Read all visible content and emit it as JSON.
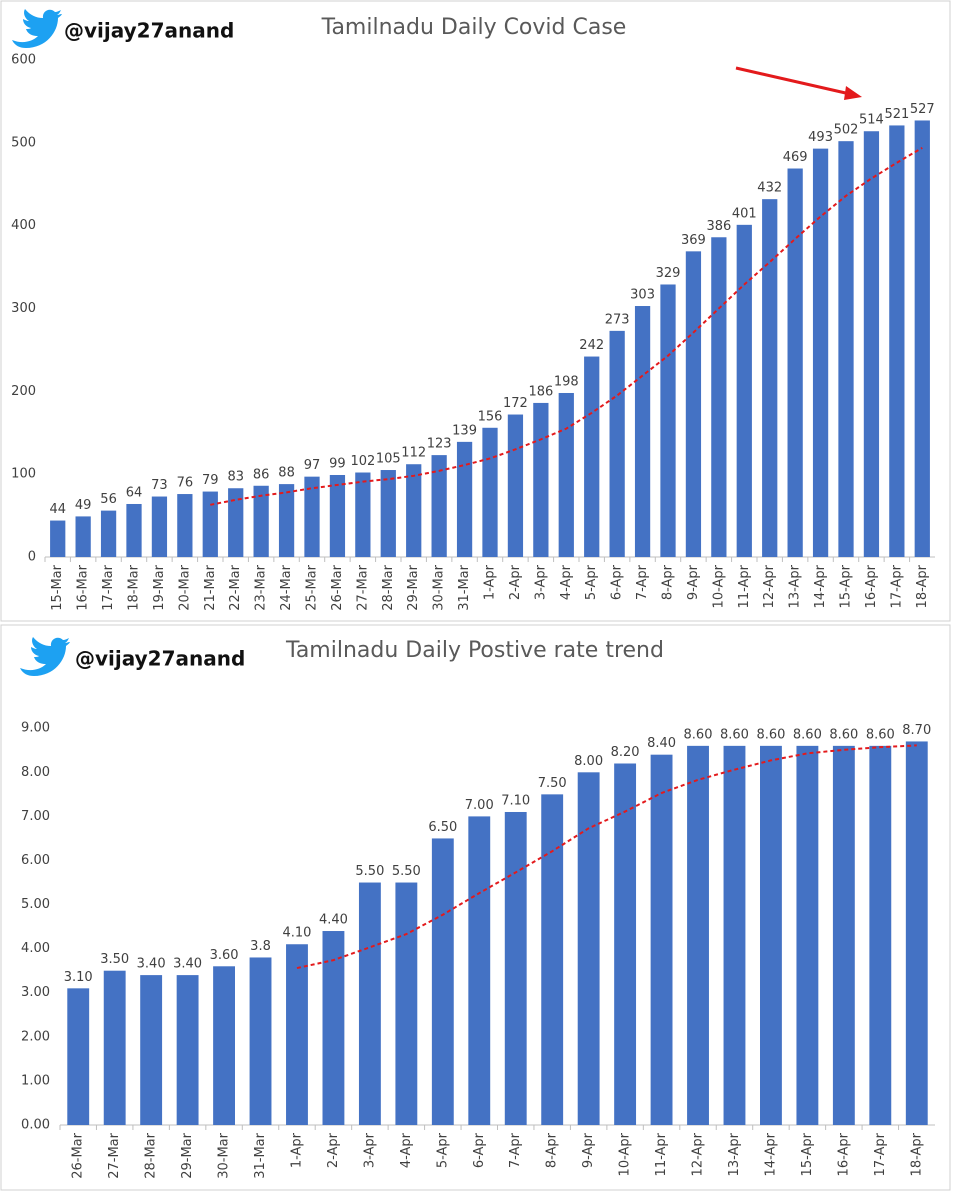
{
  "chart_data": [
    {
      "type": "bar",
      "handle": "@vijay27anand",
      "title": "Tamilnadu Daily Covid Case",
      "categories": [
        "15-Mar",
        "16-Mar",
        "17-Mar",
        "18-Mar",
        "19-Mar",
        "20-Mar",
        "21-Mar",
        "22-Mar",
        "23-Mar",
        "24-Mar",
        "25-Mar",
        "26-Mar",
        "27-Mar",
        "28-Mar",
        "29-Mar",
        "30-Mar",
        "31-Mar",
        "1-Apr",
        "2-Apr",
        "3-Apr",
        "4-Apr",
        "5-Apr",
        "6-Apr",
        "7-Apr",
        "8-Apr",
        "9-Apr",
        "10-Apr",
        "11-Apr",
        "12-Apr",
        "13-Apr",
        "14-Apr",
        "15-Apr",
        "16-Apr",
        "17-Apr",
        "18-Apr"
      ],
      "values": [
        44,
        49,
        56,
        64,
        73,
        76,
        79,
        83,
        86,
        88,
        97,
        99,
        102,
        105,
        112,
        123,
        139,
        156,
        172,
        186,
        198,
        242,
        273,
        303,
        329,
        369,
        386,
        401,
        432,
        469,
        493,
        502,
        514,
        521,
        527
      ],
      "color": "#4472c4",
      "trendline": {
        "color": "#e31a1c",
        "values": [
          null,
          null,
          null,
          null,
          null,
          null,
          63,
          69,
          74,
          78,
          83,
          87,
          91,
          94,
          98,
          104,
          111,
          119,
          130,
          142,
          155,
          174,
          195,
          219,
          243,
          271,
          300,
          329,
          356,
          384,
          411,
          436,
          457,
          476,
          494
        ]
      },
      "ylim": [
        0,
        600
      ],
      "yticks": [
        0,
        100,
        200,
        300,
        400,
        500,
        600
      ],
      "grid": false
    },
    {
      "type": "bar",
      "handle": "@vijay27anand",
      "title": "Tamilnadu Daily Postive rate trend",
      "categories": [
        "26-Mar",
        "27-Mar",
        "28-Mar",
        "29-Mar",
        "30-Mar",
        "31-Mar",
        "1-Apr",
        "2-Apr",
        "3-Apr",
        "4-Apr",
        "5-Apr",
        "6-Apr",
        "7-Apr",
        "8-Apr",
        "9-Apr",
        "10-Apr",
        "11-Apr",
        "12-Apr",
        "13-Apr",
        "14-Apr",
        "15-Apr",
        "16-Apr",
        "17-Apr",
        "18-Apr"
      ],
      "values": [
        3.1,
        3.5,
        3.4,
        3.4,
        3.6,
        3.8,
        4.1,
        4.4,
        5.5,
        5.5,
        6.5,
        7,
        7.1,
        7.5,
        8,
        8.2,
        8.4,
        8.6,
        8.6,
        8.6,
        8.6,
        8.6,
        8.6,
        8.7
      ],
      "value_labels": [
        "3.10",
        "3.50",
        "3.40",
        "3.40",
        "3.60",
        "3.8",
        "4.10",
        "4.40",
        "5.50",
        "5.50",
        "6.50",
        "7.00",
        "7.10",
        "7.50",
        "8.00",
        "8.20",
        "8.40",
        "8.60",
        "8.60",
        "8.60",
        "8.60",
        "8.60",
        "8.60",
        "8.70"
      ],
      "color": "#4472c4",
      "trendline": {
        "color": "#e31a1c",
        "values": [
          null,
          null,
          null,
          null,
          null,
          null,
          3.56,
          3.74,
          4.03,
          4.33,
          4.77,
          5.26,
          5.73,
          6.21,
          6.73,
          7.11,
          7.53,
          7.83,
          8.06,
          8.27,
          8.43,
          8.51,
          8.57,
          8.61
        ]
      },
      "ylim": [
        0,
        9.3
      ],
      "yticks": [
        {
          "value": 0,
          "label": "0.00"
        },
        {
          "value": 1,
          "label": "1.00"
        },
        {
          "value": 2,
          "label": "2.00"
        },
        {
          "value": 3,
          "label": "3.00"
        },
        {
          "value": 4,
          "label": "4.00"
        },
        {
          "value": 5,
          "label": "5.00"
        },
        {
          "value": 6,
          "label": "6.00"
        },
        {
          "value": 7,
          "label": "7.00"
        },
        {
          "value": 8,
          "label": "8.00"
        },
        {
          "value": 9,
          "label": "9.00"
        }
      ],
      "grid": false
    }
  ]
}
